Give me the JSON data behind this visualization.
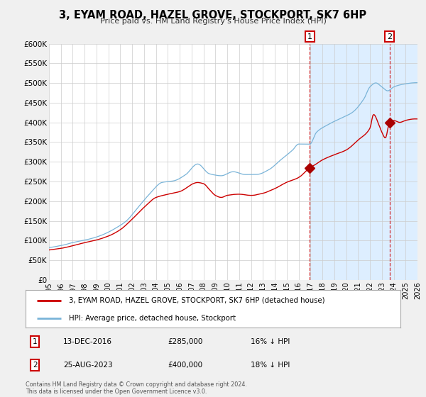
{
  "title": "3, EYAM ROAD, HAZEL GROVE, STOCKPORT, SK7 6HP",
  "subtitle": "Price paid vs. HM Land Registry's House Price Index (HPI)",
  "ylim": [
    0,
    600000
  ],
  "xlim": [
    1995,
    2026
  ],
  "yticks": [
    0,
    50000,
    100000,
    150000,
    200000,
    250000,
    300000,
    350000,
    400000,
    450000,
    500000,
    550000,
    600000
  ],
  "ytick_labels": [
    "£0",
    "£50K",
    "£100K",
    "£150K",
    "£200K",
    "£250K",
    "£300K",
    "£350K",
    "£400K",
    "£450K",
    "£500K",
    "£550K",
    "£600K"
  ],
  "xticks": [
    1995,
    1996,
    1997,
    1998,
    1999,
    2000,
    2001,
    2002,
    2003,
    2004,
    2005,
    2006,
    2007,
    2008,
    2009,
    2010,
    2011,
    2012,
    2013,
    2014,
    2015,
    2016,
    2017,
    2018,
    2019,
    2020,
    2021,
    2022,
    2023,
    2024,
    2025,
    2026
  ],
  "hpi_color": "#7ab4d8",
  "price_color": "#cc0000",
  "marker_color": "#aa0000",
  "ann1_x": 2016.95,
  "ann1_y": 285000,
  "ann2_x": 2023.65,
  "ann2_y": 400000,
  "ann1_date": "13-DEC-2016",
  "ann1_price": "£285,000",
  "ann1_pct": "16% ↓ HPI",
  "ann2_date": "25-AUG-2023",
  "ann2_price": "£400,000",
  "ann2_pct": "18% ↓ HPI",
  "legend_line1": "3, EYAM ROAD, HAZEL GROVE, STOCKPORT, SK7 6HP (detached house)",
  "legend_line2": "HPI: Average price, detached house, Stockport",
  "footnote": "Contains HM Land Registry data © Crown copyright and database right 2024.\nThis data is licensed under the Open Government Licence v3.0.",
  "bg_color": "#f0f0f0",
  "plot_bg": "#ffffff",
  "plot_bg_highlight": "#ddeeff",
  "grid_color": "#cccccc",
  "highlight_start": 2016.95
}
